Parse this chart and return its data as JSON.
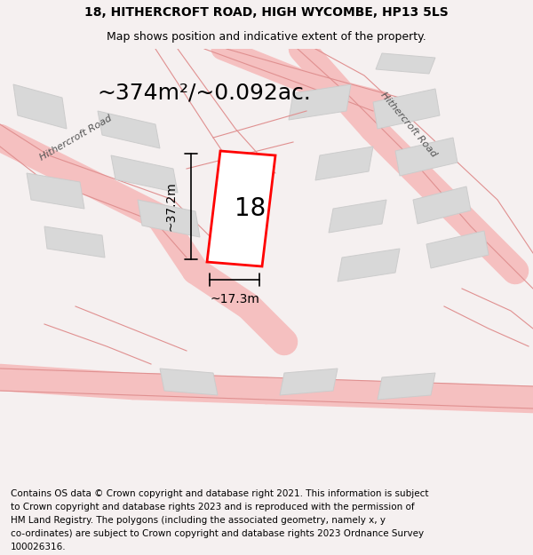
{
  "title": "18, HITHERCROFT ROAD, HIGH WYCOMBE, HP13 5LS",
  "subtitle": "Map shows position and indicative extent of the property.",
  "area_text": "~374m²/~0.092ac.",
  "number_label": "18",
  "dim_width": "~17.3m",
  "dim_height": "~37.2m",
  "footer_text": "Contains OS data © Crown copyright and database right 2021. This information is subject to Crown copyright and database rights 2023 and is reproduced with the permission of HM Land Registry. The polygons (including the associated geometry, namely x, y co-ordinates) are subject to Crown copyright and database rights 2023 Ordnance Survey 100026316.",
  "background_color": "#f5f0f0",
  "map_bg": "#ffffff",
  "plot_color": "#ff0000",
  "road_label_1": "Hithercroft Road",
  "road_label_2": "Hithercroft Road",
  "title_fontsize": 10,
  "subtitle_fontsize": 9,
  "footer_fontsize": 7.5
}
